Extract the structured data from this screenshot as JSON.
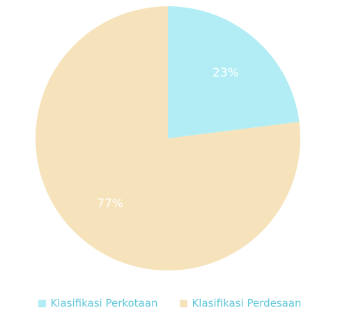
{
  "chart_data": {
    "type": "pie",
    "title": "",
    "categories": [
      "Klasifikasi Perkotaan",
      "Klasifikasi Perdesaan"
    ],
    "values": [
      23,
      77
    ],
    "labels": [
      "23%",
      "77%"
    ],
    "colors": [
      "#b2edf5",
      "#f6e3bc"
    ],
    "legend": {
      "position": "bottom",
      "entries": [
        "Klasifikasi Perkotaan",
        "Klasifikasi Perdesaan"
      ]
    },
    "legend_text_color": "#5fc7d9"
  }
}
